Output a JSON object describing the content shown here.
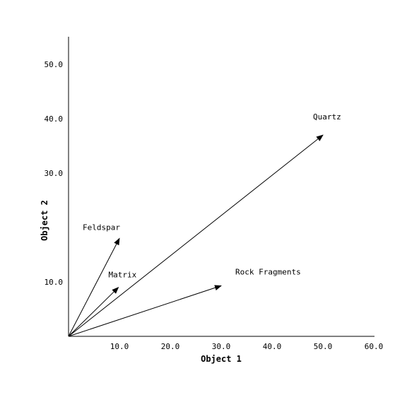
{
  "chart_data": {
    "type": "line",
    "title": "",
    "xlabel": "Object 1",
    "ylabel": "Object 2",
    "xlim": [
      0,
      60
    ],
    "ylim": [
      0,
      55
    ],
    "x_ticks": [
      10,
      20,
      30,
      40,
      50,
      60
    ],
    "y_ticks": [
      10,
      30,
      40,
      50
    ],
    "x_tick_labels": [
      "10.0",
      "20.0",
      "30.0",
      "40.0",
      "50.0",
      "60.0"
    ],
    "y_tick_labels": [
      "10.0",
      "30.0",
      "40.0",
      "50.0"
    ],
    "grid": false,
    "origin": [
      0,
      0
    ],
    "vectors": [
      {
        "name": "Quartz",
        "x": 50.0,
        "y": 37.0
      },
      {
        "name": "Feldspar",
        "x": 10.0,
        "y": 18.0
      },
      {
        "name": "Matrix",
        "x": 9.8,
        "y": 9.0
      },
      {
        "name": "Rock Fragments",
        "x": 30.0,
        "y": 9.3
      }
    ]
  }
}
